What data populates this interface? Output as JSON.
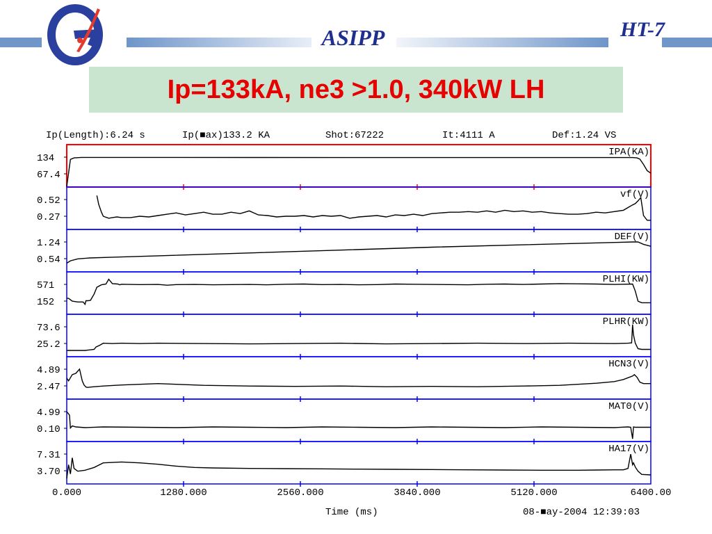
{
  "header": {
    "org": "ASIPP",
    "device": "HT-7",
    "logo": "ASIPP-logo",
    "colors": {
      "bar": "#6f95c9",
      "heading": "#1f2f8f"
    }
  },
  "title": {
    "text": "Ip=133kA, ne3 >1.0, 340kW LH",
    "color": "#e60000",
    "background": "#c9e4cf"
  },
  "chart_data": {
    "type": "line",
    "info_line": {
      "ip_length": "Ip(Length):6.24 s",
      "ip_max": "Ip(■ax)133.2 KA",
      "shot": "Shot:67222",
      "it": "It:4111 A",
      "def": "Def:1.24 VS"
    },
    "x_ticks": [
      "0.000",
      "1280.000",
      "2560.000",
      "3840.000",
      "5120.000",
      "6400.00"
    ],
    "xlabel": "Time (ms)",
    "xlim": [
      0,
      6400
    ],
    "timestamp": "08-■ay-2004 12:39:03",
    "colors": {
      "frame": "#0000ff",
      "highlight": "#ff0000",
      "trace": "#000000"
    },
    "panels": [
      {
        "name": "IPA(KA)",
        "top_label": "134",
        "bottom_label": "67.4",
        "highlighted": true,
        "series": {
          "name": "IPA(KA)",
          "x": [
            0,
            20,
            40,
            80,
            160,
            300,
            700,
            2000,
            4000,
            6000,
            6200,
            6250,
            6280,
            6320,
            6360,
            6400
          ],
          "y": [
            0,
            70,
            125,
            131,
            133,
            133,
            132.8,
            132.6,
            132.4,
            132.4,
            132.3,
            131,
            126,
            105,
            80,
            70
          ]
        }
      },
      {
        "name": "vf(V)",
        "top_label": "0.52",
        "bottom_label": "0.27",
        "highlighted": false,
        "series": {
          "name": "vf(V)",
          "x": [
            0,
            300,
            330,
            350,
            380,
            400,
            420,
            440,
            460,
            500,
            550,
            600,
            700,
            800,
            900,
            1000,
            1100,
            1200,
            1300,
            1400,
            1500,
            1600,
            1700,
            1800,
            1900,
            2000,
            2100,
            2200,
            2300,
            2400,
            2500,
            2600,
            2700,
            2800,
            2900,
            3000,
            3100,
            3200,
            3300,
            3400,
            3500,
            3600,
            3700,
            3800,
            3900,
            4000,
            4100,
            4200,
            4300,
            4400,
            4500,
            4600,
            4700,
            4800,
            4900,
            5000,
            5100,
            5200,
            5300,
            5400,
            5500,
            5600,
            5700,
            5800,
            5900,
            6000,
            6100,
            6150,
            6200,
            6230,
            6260,
            6290,
            6320,
            6360,
            6400
          ],
          "y": [
            null,
            null,
            0.58,
            0.45,
            0.33,
            0.27,
            0.26,
            0.25,
            0.24,
            0.25,
            0.26,
            0.25,
            0.25,
            0.27,
            0.26,
            0.28,
            0.3,
            0.32,
            0.29,
            0.31,
            0.33,
            0.3,
            0.3,
            0.33,
            0.31,
            0.35,
            0.29,
            0.28,
            0.26,
            0.27,
            0.27,
            0.28,
            0.26,
            0.28,
            0.27,
            0.28,
            0.24,
            0.26,
            0.27,
            0.28,
            0.26,
            0.29,
            0.28,
            0.3,
            0.28,
            0.31,
            0.32,
            0.33,
            0.33,
            0.34,
            0.33,
            0.35,
            0.33,
            0.36,
            0.34,
            0.35,
            0.33,
            0.34,
            0.32,
            0.31,
            0.3,
            0.3,
            0.31,
            0.33,
            0.32,
            0.34,
            0.36,
            0.4,
            0.44,
            0.46,
            0.5,
            0.55,
            0.28,
            0.21,
            0.21
          ]
        }
      },
      {
        "name": "DEF(V)",
        "top_label": "1.24",
        "bottom_label": "0.54",
        "highlighted": false,
        "series": {
          "name": "DEF(V)",
          "x": [
            0,
            40,
            120,
            250,
            500,
            1000,
            2000,
            3000,
            4000,
            5000,
            6000,
            6200,
            6260,
            6320,
            6400
          ],
          "y": [
            0.35,
            0.45,
            0.53,
            0.57,
            0.6,
            0.66,
            0.78,
            0.9,
            1.02,
            1.12,
            1.22,
            1.24,
            1.24,
            1.14,
            1.06
          ]
        }
      },
      {
        "name": "PLHI(KW)",
        "top_label": "571",
        "bottom_label": "152",
        "highlighted": false,
        "series": {
          "name": "PLHI(KW)",
          "x": [
            0,
            20,
            60,
            120,
            180,
            200,
            210,
            230,
            260,
            300,
            330,
            380,
            430,
            460,
            500,
            560,
            580,
            600,
            700,
            800,
            1000,
            1100,
            1200,
            1400,
            1600,
            1800,
            2000,
            2200,
            2400,
            2600,
            2800,
            3000,
            3200,
            3400,
            3600,
            3800,
            4000,
            4200,
            4400,
            4600,
            4800,
            5000,
            5200,
            5400,
            5600,
            5800,
            6000,
            6100,
            6200,
            6230,
            6260,
            6300,
            6400
          ],
          "y": [
            220,
            220,
            150,
            130,
            130,
            70,
            160,
            160,
            170,
            330,
            500,
            560,
            580,
            700,
            590,
            580,
            560,
            575,
            570,
            565,
            570,
            550,
            565,
            570,
            560,
            565,
            570,
            560,
            575,
            580,
            565,
            570,
            560,
            565,
            580,
            575,
            570,
            565,
            560,
            575,
            580,
            570,
            580,
            590,
            585,
            580,
            570,
            575,
            580,
            400,
            150,
            110,
            110
          ]
        }
      },
      {
        "name": "PLHR(KW)",
        "top_label": "73.6",
        "bottom_label": "25.2",
        "highlighted": false,
        "series": {
          "name": "PLHR(KW)",
          "x": [
            0,
            100,
            200,
            300,
            320,
            360,
            400,
            500,
            600,
            800,
            1000,
            1500,
            2000,
            2500,
            3000,
            3500,
            4000,
            4500,
            5000,
            5500,
            6000,
            6150,
            6190,
            6200,
            6210,
            6230,
            6260,
            6300,
            6400
          ],
          "y": [
            5,
            5,
            5,
            8,
            15,
            20,
            26,
            25,
            26,
            25,
            26,
            25,
            24,
            25,
            26,
            24,
            25,
            26,
            25,
            26,
            25,
            26,
            27,
            80,
            50,
            26,
            10,
            8,
            8
          ]
        }
      },
      {
        "name": "HCN3(V)",
        "top_label": "4.89",
        "bottom_label": "2.47",
        "highlighted": false,
        "series": {
          "name": "HCN3(V)",
          "x": [
            0,
            20,
            60,
            100,
            140,
            170,
            190,
            200,
            210,
            230,
            260,
            300,
            400,
            600,
            800,
            1000,
            1200,
            1500,
            2000,
            2500,
            3000,
            3500,
            4000,
            4500,
            5000,
            5400,
            5600,
            5800,
            6000,
            6100,
            6200,
            6220,
            6250,
            6280,
            6320,
            6400
          ],
          "y": [
            3.6,
            3.2,
            4.1,
            4.3,
            4.9,
            3.2,
            2.6,
            2.45,
            2.3,
            2.25,
            2.3,
            2.35,
            2.45,
            2.6,
            2.7,
            2.8,
            2.7,
            2.55,
            2.45,
            2.4,
            2.45,
            2.35,
            2.4,
            2.35,
            2.45,
            2.55,
            2.7,
            2.85,
            3.1,
            3.4,
            3.9,
            4.1,
            3.7,
            3.0,
            2.8,
            2.8
          ]
        }
      },
      {
        "name": "MAT0(V)",
        "top_label": "4.99",
        "bottom_label": "0.10",
        "highlighted": false,
        "series": {
          "name": "MAT0(V)",
          "x": [
            0,
            30,
            40,
            60,
            100,
            200,
            400,
            800,
            1200,
            1600,
            2000,
            2400,
            2800,
            3200,
            3600,
            4000,
            4400,
            4800,
            5200,
            5600,
            6000,
            6150,
            6180,
            6200,
            6210,
            6230,
            6300,
            6400
          ],
          "y": [
            5.0,
            4.0,
            0.2,
            0.8,
            0.5,
            0.3,
            0.5,
            0.4,
            0.3,
            0.5,
            0.4,
            0.3,
            0.5,
            0.4,
            0.3,
            0.5,
            0.4,
            0.3,
            0.5,
            0.4,
            0.3,
            0.5,
            0.4,
            -3.0,
            0.5,
            0.4,
            0.4,
            0.4
          ]
        }
      },
      {
        "name": "HA17(V)",
        "top_label": "7.31",
        "bottom_label": "3.70",
        "highlighted": false,
        "series": {
          "name": "HA17(V)",
          "x": [
            0,
            20,
            40,
            60,
            80,
            120,
            200,
            300,
            400,
            600,
            800,
            1000,
            1200,
            1400,
            1600,
            2000,
            2400,
            2800,
            3200,
            3600,
            4000,
            4400,
            4800,
            5200,
            5600,
            5800,
            6000,
            6100,
            6150,
            6180,
            6200,
            6210,
            6230,
            6260,
            6300,
            6400
          ],
          "y": [
            2.0,
            5.0,
            3.0,
            6.5,
            4.2,
            3.6,
            3.8,
            4.4,
            5.4,
            5.6,
            5.4,
            5.1,
            4.7,
            4.4,
            4.3,
            4.2,
            4.15,
            4.1,
            4.05,
            4.0,
            3.95,
            3.9,
            3.85,
            3.8,
            3.8,
            3.85,
            3.9,
            3.9,
            4.2,
            7.3,
            5.0,
            5.4,
            4.5,
            3.6,
            2.9,
            2.8
          ]
        }
      }
    ]
  }
}
